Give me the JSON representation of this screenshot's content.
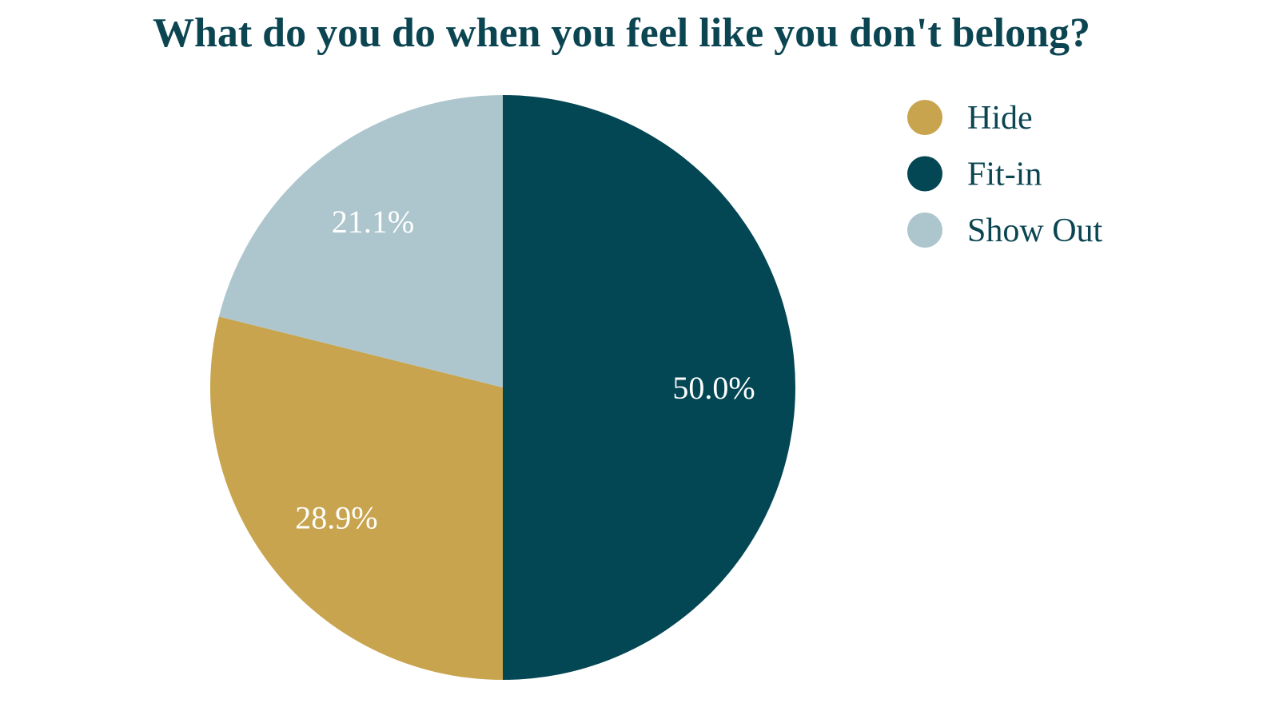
{
  "chart_data": {
    "type": "pie",
    "title": "What do you do when you feel like you don't belong?",
    "categories": [
      "Hide",
      "Fit-in",
      "Show Out"
    ],
    "values": [
      28.9,
      50.0,
      21.1
    ],
    "value_labels": [
      "28.9%",
      "50.0%",
      "21.1%"
    ],
    "colors": [
      "#c9a44e",
      "#034654",
      "#adc6cd"
    ],
    "slice_order_clockwise_from_top": [
      "Fit-in",
      "Hide",
      "Show Out"
    ],
    "legend_position": "top-right"
  }
}
